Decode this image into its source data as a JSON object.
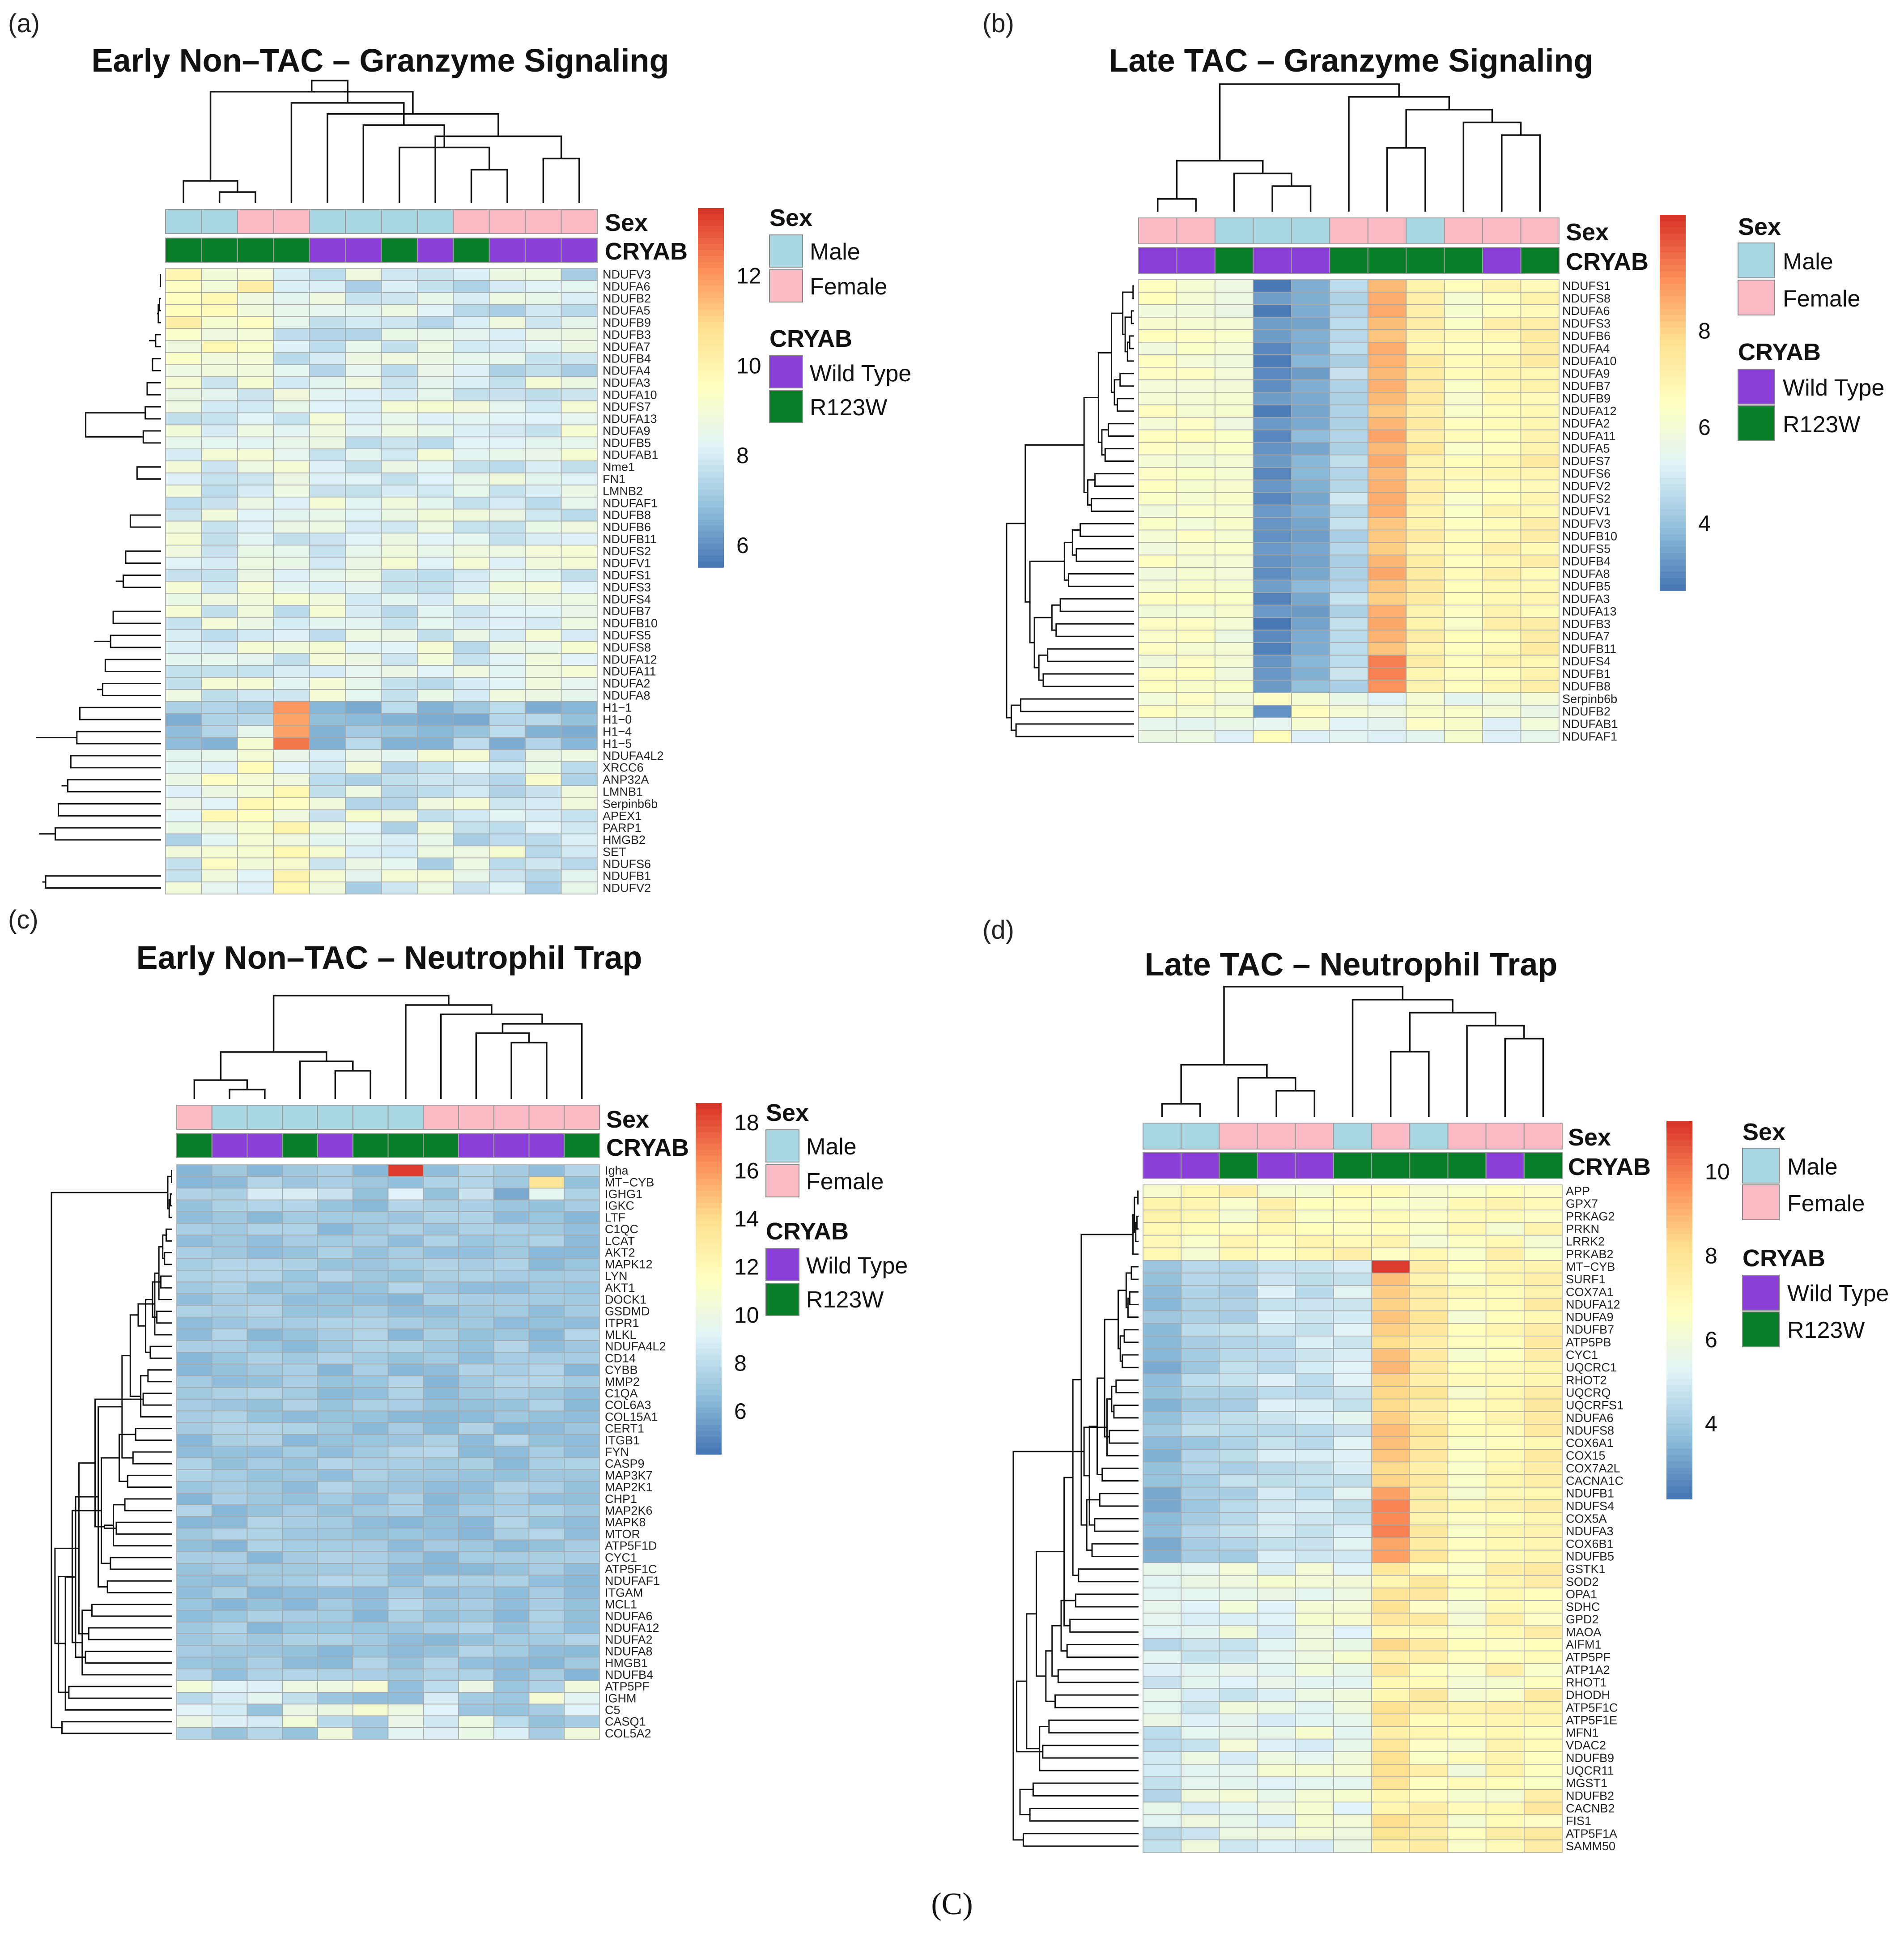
{
  "caption": "(C)",
  "colors": {
    "male": "#a9d7e4",
    "female": "#fbbbc4",
    "wild_type": "#8a3fd6",
    "r123w": "#0a7f2a",
    "scale": [
      "#4575b4",
      "#91bfdb",
      "#e0f3f8",
      "#ffffbf",
      "#fee090",
      "#fc8d59",
      "#d73027"
    ]
  },
  "legend_text": {
    "sex_title": "Sex",
    "male": "Male",
    "female": "Female",
    "cryab_title": "CRYAB",
    "wild_type": "Wild Type",
    "r123w": "R123W"
  },
  "chart_data": [
    {
      "type": "heatmap",
      "panel": "(a)",
      "title": "Early Non–TAC – Granzyme Signaling",
      "annotation_labels": [
        "Sex",
        "CRYAB"
      ],
      "sex": [
        "M",
        "M",
        "F",
        "F",
        "M",
        "M",
        "M",
        "M",
        "F",
        "F",
        "F",
        "F"
      ],
      "cryab": [
        "R",
        "R",
        "R",
        "R",
        "W",
        "W",
        "R",
        "W",
        "R",
        "W",
        "W",
        "W"
      ],
      "genes": [
        "NDUFV3",
        "NDUFA6",
        "NDUFB2",
        "NDUFA5",
        "NDUFB9",
        "NDUFB3",
        "NDUFA7",
        "NDUFB4",
        "NDUFA4",
        "NDUFA3",
        "NDUFA10",
        "NDUFS7",
        "NDUFA13",
        "NDUFA9",
        "NDUFB5",
        "NDUFAB1",
        "Nme1",
        "FN1",
        "LMNB2",
        "NDUFAF1",
        "NDUFB8",
        "NDUFB6",
        "NDUFB11",
        "NDUFS2",
        "NDUFV1",
        "NDUFS1",
        "NDUFS3",
        "NDUFS4",
        "NDUFB7",
        "NDUFB10",
        "NDUFS5",
        "NDUFS8",
        "NDUFA12",
        "NDUFA11",
        "NDUFA2",
        "NDUFA8",
        "H1−1",
        "H1−0",
        "H1−4",
        "H1−5",
        "NDUFA4L2",
        "XRCC6",
        "ANP32A",
        "LMNB1",
        "Serpinb6b",
        "APEX1",
        "PARP1",
        "HMGB2",
        "SET",
        "NDUFS6",
        "NDUFB1",
        "NDUFV2"
      ],
      "colorbar": {
        "min": 5.5,
        "max": 13.5,
        "ticks": [
          6,
          8,
          10,
          12
        ]
      },
      "col_dendrogram": [
        [
          1,
          2
        ],
        [
          0,
          12
        ],
        [
          8,
          9
        ],
        [
          10,
          11
        ],
        [
          6,
          14
        ],
        [
          7,
          15
        ],
        [
          5,
          16
        ],
        [
          4,
          17
        ],
        [
          3,
          18
        ],
        [
          13,
          19
        ],
        [
          20,
          21
        ]
      ],
      "row_dendrogram": [
        [
          0,
          1
        ],
        [
          2,
          3
        ],
        [
          53,
          4
        ],
        [
          54,
          55
        ],
        [
          5,
          6
        ],
        [
          57,
          58
        ],
        [
          7,
          8
        ],
        [
          59,
          60
        ],
        [
          56,
          61
        ],
        [
          9,
          10
        ],
        [
          11,
          12
        ],
        [
          13,
          14
        ],
        [
          65,
          15
        ],
        [
          64,
          66
        ],
        [
          16,
          17
        ],
        [
          68,
          18
        ],
        [
          69,
          19
        ],
        [
          20,
          21
        ],
        [
          71,
          22
        ],
        [
          23,
          24
        ],
        [
          25,
          26
        ],
        [
          74,
          27
        ],
        [
          73,
          75
        ],
        [
          72,
          76
        ],
        [
          28,
          29
        ],
        [
          30,
          31
        ],
        [
          78,
          79
        ],
        [
          32,
          33
        ],
        [
          34,
          35
        ],
        [
          81,
          82
        ],
        [
          80,
          83
        ],
        [
          77,
          84
        ],
        [
          70,
          85
        ],
        [
          67,
          86
        ],
        [
          62,
          63
        ],
        [
          88,
          87
        ],
        [
          36,
          37
        ],
        [
          38,
          39
        ],
        [
          90,
          91
        ],
        [
          40,
          41
        ],
        [
          42,
          43
        ],
        [
          93,
          94
        ],
        [
          92,
          95
        ],
        [
          44,
          45
        ],
        [
          46,
          47
        ],
        [
          97,
          48
        ],
        [
          98,
          49
        ],
        [
          50,
          51
        ],
        [
          99,
          100
        ],
        [
          96,
          101
        ],
        [
          89,
          102
        ]
      ]
    },
    {
      "type": "heatmap",
      "panel": "(b)",
      "title": "Late TAC – Granzyme Signaling",
      "annotation_labels": [
        "Sex",
        "CRYAB"
      ],
      "sex": [
        "F",
        "F",
        "M",
        "M",
        "M",
        "F",
        "F",
        "M",
        "F",
        "F",
        "F"
      ],
      "cryab": [
        "W",
        "W",
        "R",
        "W",
        "W",
        "R",
        "R",
        "R",
        "R",
        "W",
        "R"
      ],
      "genes": [
        "NDUFS1",
        "NDUFS8",
        "NDUFA6",
        "NDUFS3",
        "NDUFB6",
        "NDUFA4",
        "NDUFA10",
        "NDUFA9",
        "NDUFB7",
        "NDUFB9",
        "NDUFA12",
        "NDUFA2",
        "NDUFA11",
        "NDUFA5",
        "NDUFS7",
        "NDUFS6",
        "NDUFV2",
        "NDUFS2",
        "NDUFV1",
        "NDUFV3",
        "NDUFB10",
        "NDUFS5",
        "NDUFB4",
        "NDUFA8",
        "NDUFB5",
        "NDUFA3",
        "NDUFA13",
        "NDUFB3",
        "NDUFA7",
        "NDUFB11",
        "NDUFS4",
        "NDUFB1",
        "NDUFB8",
        "Serpinb6b",
        "NDUFB2",
        "NDUFAB1",
        "NDUFAF1"
      ],
      "colorbar": {
        "min": 2.6,
        "max": 10.4,
        "ticks": [
          4,
          6,
          8
        ]
      },
      "col_dendrogram": [
        [
          0,
          1
        ],
        [
          3,
          4
        ],
        [
          2,
          12
        ],
        [
          11,
          13
        ],
        [
          6,
          7
        ],
        [
          9,
          10
        ],
        [
          8,
          16
        ],
        [
          15,
          17
        ],
        [
          5,
          18
        ],
        [
          14,
          19
        ]
      ],
      "row_dendrogram": [
        [
          0,
          1
        ],
        [
          2,
          3
        ],
        [
          4,
          5
        ],
        [
          39,
          6
        ],
        [
          38,
          40
        ],
        [
          37,
          41
        ],
        [
          7,
          8
        ],
        [
          9,
          10
        ],
        [
          43,
          44
        ],
        [
          42,
          45
        ],
        [
          11,
          12
        ],
        [
          13,
          14
        ],
        [
          47,
          48
        ],
        [
          46,
          49
        ],
        [
          15,
          16
        ],
        [
          17,
          18
        ],
        [
          51,
          52
        ],
        [
          50,
          53
        ],
        [
          19,
          20
        ],
        [
          21,
          22
        ],
        [
          55,
          56
        ],
        [
          23,
          24
        ],
        [
          57,
          58
        ],
        [
          25,
          26
        ],
        [
          27,
          28
        ],
        [
          60,
          61
        ],
        [
          29,
          30
        ],
        [
          31,
          32
        ],
        [
          63,
          64
        ],
        [
          62,
          65
        ],
        [
          59,
          66
        ],
        [
          54,
          67
        ],
        [
          33,
          34
        ],
        [
          35,
          36
        ],
        [
          69,
          70
        ],
        [
          68,
          71
        ]
      ]
    },
    {
      "type": "heatmap",
      "panel": "(c)",
      "title": "Early Non–TAC – Neutrophil Trap",
      "annotation_labels": [
        "Sex",
        "CRYAB"
      ],
      "sex": [
        "F",
        "M",
        "M",
        "M",
        "M",
        "M",
        "M",
        "F",
        "F",
        "F",
        "F",
        "F"
      ],
      "cryab": [
        "R",
        "W",
        "W",
        "R",
        "W",
        "R",
        "R",
        "R",
        "W",
        "W",
        "W",
        "R"
      ],
      "genes": [
        "Igha",
        "MT−CYB",
        "IGHG1",
        "IGKC",
        "LTF",
        "C1QC",
        "LCAT",
        "AKT2",
        "MAPK12",
        "LYN",
        "AKT1",
        "DOCK1",
        "GSDMD",
        "ITPR1",
        "MLKL",
        "NDUFA4L2",
        "CD14",
        "CYBB",
        "MMP2",
        "C1QA",
        "COL6A3",
        "COL15A1",
        "CERT1",
        "ITGB1",
        "FYN",
        "CASP9",
        "MAP3K7",
        "MAP2K1",
        "CHP1",
        "MAP2K6",
        "MAPK8",
        "MTOR",
        "ATP5F1D",
        "CYC1",
        "ATP5F1C",
        "NDUFAF1",
        "ITGAM",
        "MCL1",
        "NDUFA6",
        "NDUFA12",
        "NDUFA2",
        "NDUFA8",
        "HMGB1",
        "NDUFB4",
        "ATP5PF",
        "IGHM",
        "C5",
        "CASQ1",
        "COL5A2"
      ],
      "colorbar": {
        "min": 4.2,
        "max": 18.8,
        "ticks": [
          6,
          8,
          10,
          12,
          14,
          16,
          18
        ]
      },
      "col_dendrogram": [
        [
          1,
          2
        ],
        [
          0,
          12
        ],
        [
          4,
          5
        ],
        [
          3,
          14
        ],
        [
          13,
          15
        ],
        [
          9,
          10
        ],
        [
          8,
          17
        ],
        [
          11,
          18
        ],
        [
          7,
          19
        ],
        [
          6,
          20
        ],
        [
          16,
          21
        ]
      ],
      "row_dendrogram": [
        [
          0,
          1
        ],
        [
          2,
          3
        ],
        [
          50,
          4
        ],
        [
          49,
          51
        ],
        [
          5,
          6
        ],
        [
          7,
          8
        ],
        [
          53,
          54
        ],
        [
          9,
          10
        ],
        [
          55,
          11
        ],
        [
          12,
          13
        ],
        [
          57,
          14
        ],
        [
          56,
          58
        ],
        [
          15,
          16
        ],
        [
          17,
          18
        ],
        [
          60,
          61
        ],
        [
          19,
          20
        ],
        [
          62,
          21
        ],
        [
          59,
          63
        ],
        [
          22,
          23
        ],
        [
          24,
          25
        ],
        [
          65,
          66
        ],
        [
          26,
          27
        ],
        [
          28,
          29
        ],
        [
          68,
          69
        ],
        [
          67,
          70
        ],
        [
          30,
          31
        ],
        [
          71,
          32
        ],
        [
          33,
          34
        ],
        [
          35,
          36
        ],
        [
          74,
          75
        ],
        [
          73,
          76
        ],
        [
          72,
          77
        ],
        [
          64,
          78
        ],
        [
          37,
          38
        ],
        [
          39,
          40
        ],
        [
          41,
          42
        ],
        [
          82,
          43
        ],
        [
          81,
          83
        ],
        [
          80,
          84
        ],
        [
          79,
          85
        ],
        [
          44,
          45
        ],
        [
          87,
          46
        ],
        [
          47,
          48
        ],
        [
          88,
          89
        ],
        [
          86,
          90
        ],
        [
          52,
          91
        ]
      ]
    },
    {
      "type": "heatmap",
      "panel": "(d)",
      "title": "Late TAC – Neutrophil Trap",
      "annotation_labels": [
        "Sex",
        "CRYAB"
      ],
      "sex": [
        "M",
        "M",
        "F",
        "F",
        "F",
        "M",
        "F",
        "M",
        "F",
        "F",
        "F"
      ],
      "cryab": [
        "W",
        "W",
        "R",
        "W",
        "W",
        "R",
        "R",
        "R",
        "R",
        "W",
        "R"
      ],
      "genes": [
        "APP",
        "GPX7",
        "PRKAG2",
        "PRKN",
        "LRRK2",
        "PRKAB2",
        "MT−CYB",
        "SURF1",
        "COX7A1",
        "NDUFA12",
        "NDUFA9",
        "NDUFB7",
        "ATP5PB",
        "CYC1",
        "UQCRC1",
        "RHOT2",
        "UQCRQ",
        "UQCRFS1",
        "NDUFA6",
        "NDUFS8",
        "COX6A1",
        "COX15",
        "COX7A2L",
        "CACNA1C",
        "NDUFB1",
        "NDUFS4",
        "COX5A",
        "NDUFA3",
        "COX6B1",
        "NDUFB5",
        "GSTK1",
        "SOD2",
        "OPA1",
        "SDHC",
        "GPD2",
        "MAOA",
        "AIFM1",
        "ATP5PF",
        "ATP1A2",
        "RHOT1",
        "DHODH",
        "ATP5F1C",
        "ATP5F1E",
        "MFN1",
        "VDAC2",
        "NDUFB9",
        "UQCR11",
        "MGST1",
        "NDUFB2",
        "CACNB2",
        "FIS1",
        "ATP5F1A",
        "SAMM50"
      ],
      "colorbar": {
        "min": 2.2,
        "max": 11.2,
        "ticks": [
          4,
          6,
          8,
          10
        ]
      },
      "col_dendrogram": [
        [
          0,
          1
        ],
        [
          3,
          4
        ],
        [
          2,
          12
        ],
        [
          11,
          13
        ],
        [
          6,
          7
        ],
        [
          9,
          10
        ],
        [
          8,
          16
        ],
        [
          15,
          17
        ],
        [
          5,
          18
        ],
        [
          14,
          19
        ]
      ],
      "row_dendrogram": [
        [
          0,
          1
        ],
        [
          2,
          3
        ],
        [
          54,
          4
        ],
        [
          53,
          55
        ],
        [
          56,
          5
        ],
        [
          6,
          7
        ],
        [
          8,
          9
        ],
        [
          59,
          10
        ],
        [
          58,
          60
        ],
        [
          11,
          12
        ],
        [
          13,
          14
        ],
        [
          62,
          63
        ],
        [
          61,
          64
        ],
        [
          15,
          16
        ],
        [
          17,
          18
        ],
        [
          66,
          67
        ],
        [
          19,
          20
        ],
        [
          68,
          21
        ],
        [
          65,
          69
        ],
        [
          22,
          23
        ],
        [
          24,
          25
        ],
        [
          71,
          72
        ],
        [
          26,
          27
        ],
        [
          28,
          29
        ],
        [
          74,
          75
        ],
        [
          73,
          76
        ],
        [
          70,
          77
        ],
        [
          57,
          78
        ],
        [
          30,
          31
        ],
        [
          32,
          33
        ],
        [
          80,
          81
        ],
        [
          34,
          35
        ],
        [
          36,
          37
        ],
        [
          83,
          84
        ],
        [
          82,
          85
        ],
        [
          38,
          39
        ],
        [
          40,
          41
        ],
        [
          87,
          88
        ],
        [
          42,
          43
        ],
        [
          89,
          90
        ],
        [
          44,
          45
        ],
        [
          91,
          46
        ],
        [
          86,
          92
        ],
        [
          47,
          48
        ],
        [
          49,
          50
        ],
        [
          94,
          95
        ],
        [
          51,
          52
        ],
        [
          96,
          97
        ],
        [
          93,
          98
        ],
        [
          79,
          99
        ]
      ]
    }
  ]
}
